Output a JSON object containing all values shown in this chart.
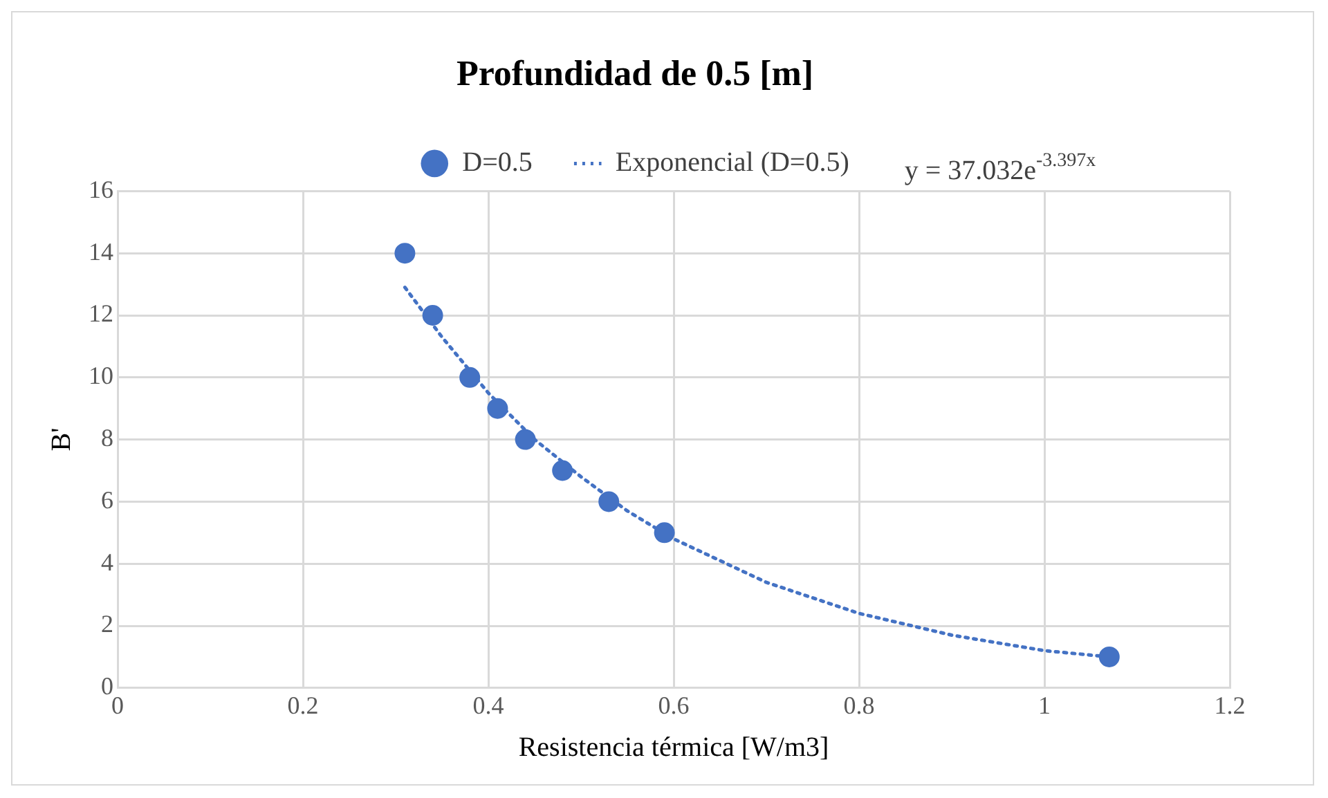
{
  "chart_data": {
    "type": "scatter",
    "title": "Profundidad de 0.5 [m]",
    "xlabel": "Resistencia térmica [W/m3]",
    "ylabel": "B'",
    "annotations": [
      "y = 37.032e$^{-3.397x}$"
    ],
    "series": [
      {
        "name": "D=0.5",
        "color": "#4472c4",
        "marker": "circle",
        "x": [
          0.31,
          0.34,
          0.38,
          0.41,
          0.44,
          0.48,
          0.53,
          0.59,
          1.07
        ],
        "values": [
          14,
          12,
          10,
          9,
          8,
          7,
          6,
          5,
          1
        ]
      },
      {
        "name": "Exponencial (D=0.5)",
        "type": "line",
        "color": "#4472c4",
        "marker": "none",
        "line_style": "dotted",
        "x": [
          0.31,
          0.35,
          0.4,
          0.45,
          0.5,
          0.55,
          0.6,
          0.7,
          0.8,
          0.9,
          1.0,
          1.07
        ],
        "values": [
          12.9,
          11.3,
          9.5,
          8.0,
          6.8,
          5.7,
          4.8,
          3.4,
          2.4,
          1.7,
          1.2,
          1.0
        ]
      }
    ],
    "xlim": [
      0,
      1.2
    ],
    "xticks": [
      0,
      0.2,
      0.4,
      0.6,
      0.8,
      1,
      1.2
    ],
    "ylim": [
      0,
      16
    ],
    "yticks": [
      0,
      2,
      4,
      6,
      8,
      10,
      12,
      14,
      16
    ],
    "grid": true,
    "legend": "top"
  }
}
